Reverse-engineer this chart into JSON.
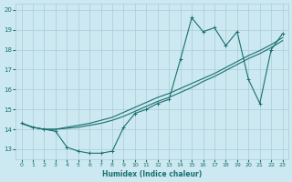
{
  "xlabel": "Humidex (Indice chaleur)",
  "xlim": [
    -0.5,
    23.5
  ],
  "ylim": [
    12.5,
    20.3
  ],
  "yticks": [
    13,
    14,
    15,
    16,
    17,
    18,
    19,
    20
  ],
  "xticks": [
    0,
    1,
    2,
    3,
    4,
    5,
    6,
    7,
    8,
    9,
    10,
    11,
    12,
    13,
    14,
    15,
    16,
    17,
    18,
    19,
    20,
    21,
    22,
    23
  ],
  "bg_color": "#cce8f0",
  "grid_color": "#aaccd8",
  "line_color": "#1a7070",
  "line1_x": [
    0,
    1,
    2,
    3,
    4,
    5,
    6,
    7,
    8,
    9,
    10,
    11,
    12,
    13,
    14,
    15,
    16,
    17,
    18,
    19,
    20,
    21,
    22,
    23
  ],
  "line1_y": [
    14.3,
    14.1,
    14.0,
    13.9,
    13.1,
    12.9,
    12.8,
    12.8,
    12.9,
    14.1,
    14.8,
    15.0,
    15.3,
    15.5,
    17.5,
    19.6,
    18.9,
    19.1,
    18.2,
    18.9,
    16.5,
    15.3,
    18.0,
    18.8
  ],
  "line2_x": [
    0,
    1,
    2,
    3,
    4,
    5,
    6,
    7,
    8,
    9,
    10,
    11,
    12,
    13,
    14,
    15,
    16,
    17,
    18,
    19,
    20,
    21,
    22,
    23
  ],
  "line2_y": [
    14.3,
    14.1,
    14.0,
    14.0,
    14.05,
    14.1,
    14.2,
    14.3,
    14.45,
    14.65,
    14.9,
    15.15,
    15.4,
    15.6,
    15.85,
    16.1,
    16.4,
    16.65,
    16.95,
    17.25,
    17.55,
    17.8,
    18.1,
    18.45
  ],
  "line3_x": [
    0,
    1,
    2,
    3,
    4,
    5,
    6,
    7,
    8,
    9,
    10,
    11,
    12,
    13,
    14,
    15,
    16,
    17,
    18,
    19,
    20,
    21,
    22,
    23
  ],
  "line3_y": [
    14.3,
    14.1,
    14.0,
    14.0,
    14.1,
    14.2,
    14.3,
    14.45,
    14.6,
    14.85,
    15.1,
    15.35,
    15.6,
    15.8,
    16.05,
    16.3,
    16.55,
    16.8,
    17.1,
    17.4,
    17.7,
    17.95,
    18.25,
    18.6
  ]
}
